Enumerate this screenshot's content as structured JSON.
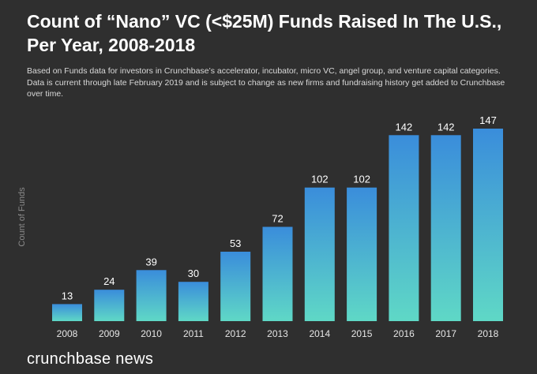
{
  "header": {
    "title": "Count of “Nano” VC (<$25M) Funds Raised In The U.S.,\nPer Year, 2008-2018",
    "subtitle": "Based on Funds data for investors in Crunchbase’s accelerator, incubator, micro VC, angel group, and venture capital categories. Data is current through late February 2019 and is subject to change as new firms and fundraising history get added to Crunchbase over time."
  },
  "chart_data": {
    "type": "bar",
    "title": "Count of “Nano” VC (<$25M) Funds Raised In The U.S., Per Year, 2008-2018",
    "xlabel": "",
    "ylabel": "Count of Funds",
    "categories": [
      "2008",
      "2009",
      "2010",
      "2011",
      "2012",
      "2013",
      "2014",
      "2015",
      "2016",
      "2017",
      "2018"
    ],
    "values": [
      13,
      24,
      39,
      30,
      53,
      72,
      102,
      102,
      142,
      142,
      147
    ],
    "ylim": [
      0,
      147
    ],
    "grid": false,
    "legend": "none",
    "data_labels": true,
    "colors": {
      "bar_top": "#3a8ddb",
      "bar_bottom": "#5fd8c6",
      "background": "#2f2f2f",
      "text": "#ffffff",
      "axis_text": "#e6e6e6",
      "ylabel": "#8a8a8a"
    }
  },
  "footer": {
    "brand": "crunchbase news"
  }
}
